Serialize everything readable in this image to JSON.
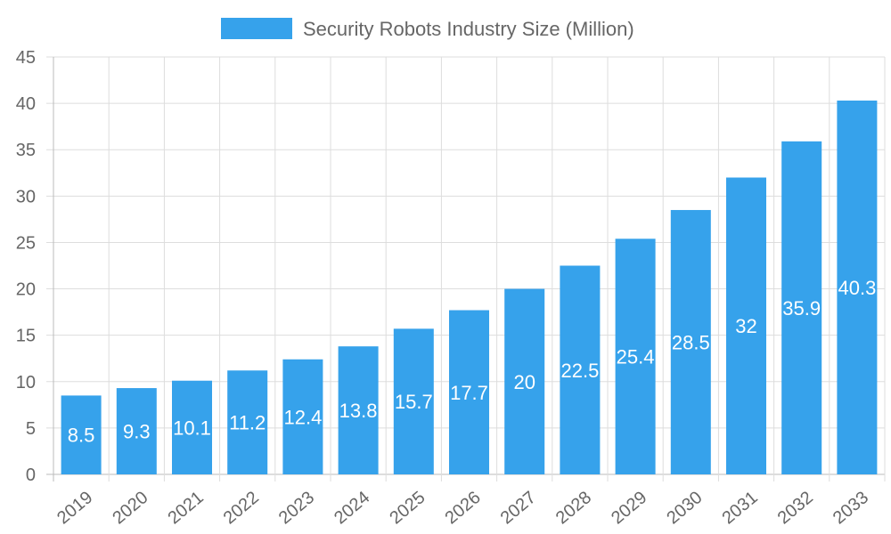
{
  "chart_data": {
    "type": "bar",
    "categories": [
      "2019",
      "2020",
      "2021",
      "2022",
      "2023",
      "2024",
      "2025",
      "2026",
      "2027",
      "2028",
      "2029",
      "2030",
      "2031",
      "2032",
      "2033"
    ],
    "series": [
      {
        "name": "Security Robots Industry Size (Million)",
        "values": [
          8.5,
          9.3,
          10.1,
          11.2,
          12.4,
          13.8,
          15.7,
          17.7,
          20,
          22.5,
          25.4,
          28.5,
          32,
          35.9,
          40.3
        ],
        "color": "#36A2EB"
      }
    ],
    "ylim": [
      0,
      45
    ],
    "yticks": [
      0,
      5,
      10,
      15,
      20,
      25,
      30,
      35,
      40,
      45
    ],
    "grid": true,
    "legend_position": "top",
    "data_labels": true
  }
}
